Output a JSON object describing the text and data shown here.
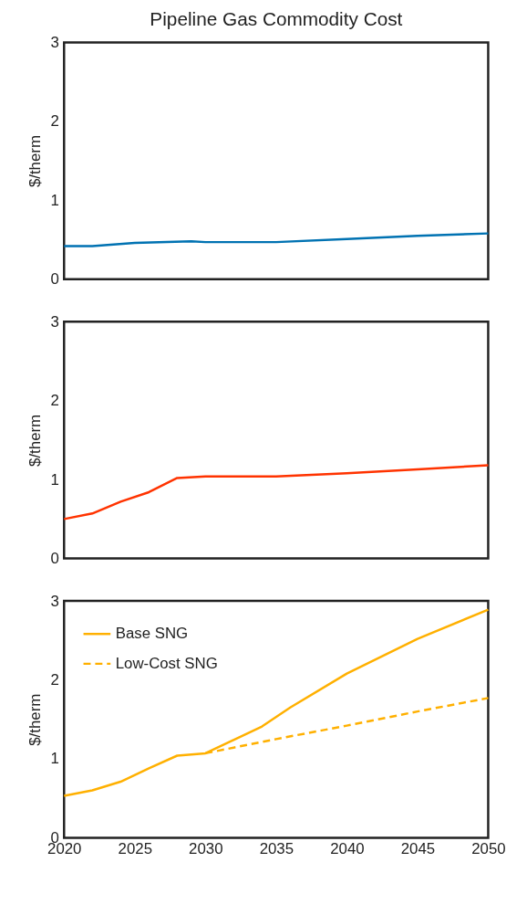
{
  "chart_data": [
    {
      "type": "line",
      "title": "Pipeline Gas Commodity Cost",
      "ylabel": "$/therm",
      "xlim": [
        2020,
        2050
      ],
      "ylim": [
        0,
        3
      ],
      "yticks": [
        0,
        1,
        2,
        3
      ],
      "grid": false,
      "legend": false,
      "tick_labels": "y",
      "line_style": "solid",
      "marker": "none",
      "series": [
        {
          "color": "#0072b2",
          "x": [
            2020,
            2022,
            2025,
            2029,
            2030,
            2035,
            2040,
            2045,
            2050
          ],
          "values": [
            0.42,
            0.42,
            0.46,
            0.48,
            0.47,
            0.47,
            0.51,
            0.55,
            0.58
          ]
        }
      ]
    },
    {
      "type": "line",
      "ylabel": "$/therm",
      "xlim": [
        2020,
        2050
      ],
      "ylim": [
        0,
        3
      ],
      "yticks": [
        0,
        1,
        2,
        3
      ],
      "grid": false,
      "legend": false,
      "tick_labels": "y",
      "line_style": "solid",
      "marker": "none",
      "series": [
        {
          "color": "#ff3300",
          "x": [
            2020,
            2022,
            2024,
            2026,
            2028,
            2030,
            2035,
            2040,
            2045,
            2050
          ],
          "values": [
            0.5,
            0.57,
            0.72,
            0.84,
            1.02,
            1.04,
            1.04,
            1.08,
            1.13,
            1.18
          ]
        }
      ]
    },
    {
      "type": "line",
      "ylabel": "$/therm",
      "xlim": [
        2020,
        2050
      ],
      "ylim": [
        0,
        3
      ],
      "xticks": [
        2020,
        2025,
        2030,
        2035,
        2040,
        2045,
        2050
      ],
      "yticks": [
        0,
        1,
        2,
        3
      ],
      "grid": false,
      "legend": "top left",
      "marker": "none",
      "series": [
        {
          "name": "Base SNG",
          "color": "#ffb000",
          "line_style": "solid",
          "x": [
            2020,
            2022,
            2024,
            2026,
            2028,
            2030,
            2034,
            2036,
            2040,
            2045,
            2050
          ],
          "values": [
            0.53,
            0.6,
            0.71,
            0.88,
            1.04,
            1.07,
            1.41,
            1.65,
            2.08,
            2.52,
            2.89
          ]
        },
        {
          "name": "Low-Cost SNG",
          "color": "#ffb000",
          "line_style": "dashed",
          "x": [
            2030,
            2035,
            2040,
            2045,
            2050
          ],
          "values": [
            1.07,
            1.25,
            1.42,
            1.6,
            1.77
          ]
        }
      ]
    }
  ]
}
